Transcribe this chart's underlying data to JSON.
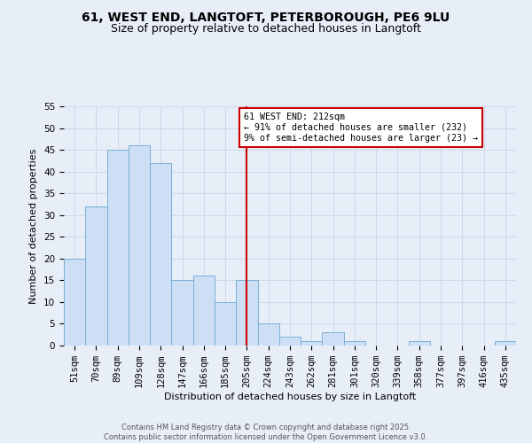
{
  "title_line1": "61, WEST END, LANGTOFT, PETERBOROUGH, PE6 9LU",
  "title_line2": "Size of property relative to detached houses in Langtoft",
  "xlabel": "Distribution of detached houses by size in Langtoft",
  "ylabel": "Number of detached properties",
  "categories": [
    "51sqm",
    "70sqm",
    "89sqm",
    "109sqm",
    "128sqm",
    "147sqm",
    "166sqm",
    "185sqm",
    "205sqm",
    "224sqm",
    "243sqm",
    "262sqm",
    "281sqm",
    "301sqm",
    "320sqm",
    "339sqm",
    "358sqm",
    "377sqm",
    "397sqm",
    "416sqm",
    "435sqm"
  ],
  "values": [
    20,
    32,
    45,
    46,
    42,
    15,
    16,
    10,
    15,
    5,
    2,
    1,
    3,
    1,
    0,
    0,
    1,
    0,
    0,
    0,
    1
  ],
  "bar_color": "#ccdff5",
  "bar_edge_color": "#7aafd4",
  "reference_line_x": 8,
  "reference_line_color": "#cc0000",
  "annotation_text": "61 WEST END: 212sqm\n← 91% of detached houses are smaller (232)\n9% of semi-detached houses are larger (23) →",
  "annotation_box_color": "#cc0000",
  "ylim": [
    0,
    55
  ],
  "yticks": [
    0,
    5,
    10,
    15,
    20,
    25,
    30,
    35,
    40,
    45,
    50,
    55
  ],
  "footer_text": "Contains HM Land Registry data © Crown copyright and database right 2025.\nContains public sector information licensed under the Open Government Licence v3.0.",
  "bg_color": "#e8eef8",
  "grid_color": "#c8d4e8",
  "title_fontsize": 10,
  "subtitle_fontsize": 9,
  "axis_label_fontsize": 8,
  "tick_fontsize": 7.5,
  "footer_fontsize": 6
}
